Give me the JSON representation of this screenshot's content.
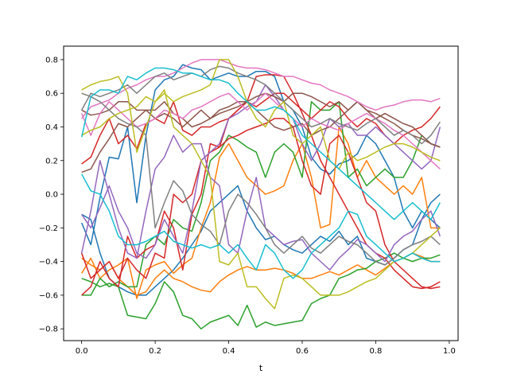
{
  "chart_data": {
    "type": "line",
    "title": "",
    "xlabel": "t",
    "ylabel": "",
    "xlim": [
      -0.049,
      1.024
    ],
    "ylim": [
      -0.87,
      0.88
    ],
    "xticks": [
      0.0,
      0.2,
      0.4,
      0.6,
      0.8,
      1.0
    ],
    "xtick_labels": [
      "0.0",
      "0.2",
      "0.4",
      "0.6",
      "0.8",
      "1.0"
    ],
    "yticks": [
      -0.8,
      -0.6,
      -0.4,
      -0.2,
      0.0,
      0.2,
      0.4,
      0.6,
      0.8
    ],
    "ytick_labels": [
      "−0.8",
      "−0.6",
      "−0.4",
      "−0.2",
      "0.0",
      "0.2",
      "0.4",
      "0.6",
      "0.8"
    ],
    "grid": false,
    "legend": "none",
    "x": [
      0.0,
      0.025,
      0.05,
      0.075,
      0.1,
      0.125,
      0.15,
      0.175,
      0.2,
      0.225,
      0.25,
      0.275,
      0.3,
      0.325,
      0.35,
      0.375,
      0.4,
      0.425,
      0.45,
      0.475,
      0.5,
      0.525,
      0.55,
      0.575,
      0.6,
      0.625,
      0.65,
      0.675,
      0.7,
      0.725,
      0.75,
      0.775,
      0.8,
      0.825,
      0.85,
      0.875,
      0.9,
      0.925,
      0.95,
      0.975
    ],
    "series": [
      {
        "color": "#1f77b4",
        "values": [
          -0.17,
          -0.3,
          -0.02,
          0.22,
          0.21,
          0.4,
          -0.05,
          0.35,
          0.62,
          0.68,
          0.7,
          0.77,
          0.75,
          0.74,
          0.68,
          0.7,
          0.72,
          0.7,
          0.7,
          0.73,
          0.73,
          0.7,
          0.55,
          0.5,
          0.4,
          0.22,
          0.15,
          0.12,
          0.18,
          0.2,
          0.24,
          0.35,
          0.3,
          0.2,
          0.1,
          -0.1,
          -0.2,
          -0.1,
          -0.15,
          -0.2
        ]
      },
      {
        "color": "#1f77b4",
        "values": [
          -0.12,
          -0.15,
          -0.35,
          -0.5,
          -0.55,
          -0.58,
          -0.6,
          -0.6,
          -0.55,
          -0.5,
          -0.45,
          -0.38,
          -0.3,
          -0.22,
          -0.1,
          -0.05,
          0.0,
          0.05,
          -0.1,
          -0.2,
          -0.27,
          -0.25,
          -0.3,
          -0.33,
          -0.35,
          -0.3,
          -0.25,
          -0.28,
          -0.22,
          -0.3,
          -0.25,
          -0.38,
          -0.4,
          -0.42,
          -0.38,
          -0.33,
          -0.3,
          -0.15,
          -0.05,
          0.0
        ]
      },
      {
        "color": "#ff7f0e",
        "values": [
          -0.47,
          -0.38,
          -0.5,
          -0.45,
          -0.42,
          -0.38,
          -0.62,
          -0.45,
          -0.42,
          -0.4,
          -0.47,
          -0.42,
          -0.38,
          -0.2,
          -0.05,
          0.22,
          0.3,
          0.2,
          0.1,
          0.05,
          0.0,
          0.02,
          0.05,
          0.2,
          0.3,
          0.1,
          -0.2,
          -0.18,
          0.4,
          0.3,
          0.1,
          0.2,
          0.1,
          0.05,
          0.0,
          0.05,
          0.0,
          0.1,
          -0.2,
          -0.2
        ]
      },
      {
        "color": "#ff7f0e",
        "values": [
          -0.38,
          -0.42,
          -0.45,
          -0.4,
          -0.5,
          -0.55,
          -0.6,
          -0.58,
          -0.5,
          -0.45,
          -0.5,
          -0.52,
          -0.55,
          -0.57,
          -0.58,
          -0.52,
          -0.48,
          -0.45,
          -0.43,
          -0.45,
          -0.45,
          -0.44,
          -0.45,
          -0.47,
          -0.5,
          -0.5,
          -0.48,
          -0.46,
          -0.48,
          -0.45,
          -0.42,
          -0.45,
          -0.48,
          -0.44,
          -0.4,
          -0.38,
          -0.35,
          -0.37,
          -0.4,
          -0.4
        ]
      },
      {
        "color": "#2ca02c",
        "values": [
          -0.5,
          -0.52,
          -0.55,
          -0.53,
          -0.55,
          -0.72,
          -0.73,
          -0.74,
          -0.65,
          -0.52,
          -0.58,
          -0.72,
          -0.74,
          -0.8,
          -0.76,
          -0.74,
          -0.72,
          -0.78,
          -0.66,
          -0.79,
          -0.76,
          -0.78,
          -0.77,
          -0.76,
          -0.75,
          -0.65,
          -0.62,
          -0.6,
          -0.5,
          -0.48,
          -0.45,
          -0.44,
          -0.4,
          -0.38,
          -0.35,
          -0.38,
          -0.4,
          -0.38,
          -0.38,
          -0.36
        ]
      },
      {
        "color": "#2ca02c",
        "values": [
          -0.6,
          -0.6,
          -0.5,
          -0.55,
          -0.52,
          -0.55,
          -0.55,
          -0.3,
          -0.25,
          -0.3,
          -0.15,
          -0.2,
          -0.22,
          -0.05,
          0.2,
          0.25,
          0.35,
          0.32,
          0.28,
          0.25,
          0.1,
          0.25,
          0.3,
          0.25,
          0.1,
          0.55,
          0.5,
          0.5,
          0.55,
          0.1,
          0.15,
          0.05,
          0.1,
          0.15,
          0.1,
          0.1,
          0.2,
          0.35,
          0.3,
          0.28
        ]
      },
      {
        "color": "#d62728",
        "values": [
          -0.6,
          -0.55,
          -0.4,
          -0.5,
          -0.55,
          -0.25,
          -0.38,
          -0.33,
          -0.3,
          -0.1,
          -0.2,
          -0.45,
          -0.12,
          0.0,
          0.3,
          0.28,
          0.45,
          0.5,
          0.55,
          0.7,
          0.71,
          0.71,
          0.7,
          0.6,
          0.48,
          0.35,
          0.2,
          0.1,
          0.0,
          -0.1,
          -0.2,
          -0.3,
          -0.35,
          -0.38,
          -0.45,
          -0.5,
          -0.55,
          -0.56,
          -0.55,
          -0.52
        ]
      },
      {
        "color": "#d62728",
        "values": [
          -0.35,
          -0.5,
          -0.45,
          -0.4,
          -0.5,
          -0.38,
          -0.45,
          -0.5,
          -0.35,
          -0.38,
          0.0,
          -0.05,
          0.0,
          0.2,
          0.25,
          0.28,
          0.33,
          0.35,
          0.38,
          0.4,
          0.42,
          0.45,
          0.45,
          0.4,
          0.2,
          0.05,
          0.0,
          0.3,
          0.35,
          0.25,
          0.1,
          -0.05,
          -0.1,
          -0.3,
          -0.4,
          -0.45,
          -0.5,
          -0.55,
          -0.56,
          -0.55
        ]
      },
      {
        "color": "#d62728",
        "values": [
          0.18,
          0.22,
          0.35,
          0.45,
          0.3,
          0.35,
          0.27,
          0.42,
          0.45,
          0.42,
          0.55,
          0.38,
          0.35,
          0.4,
          0.4,
          0.43,
          0.45,
          0.5,
          0.55,
          0.52,
          0.56,
          0.6,
          0.6,
          0.55,
          0.5,
          0.45,
          0.5,
          0.55,
          0.52,
          0.45,
          0.4,
          0.45,
          0.42,
          0.35,
          0.3,
          0.35,
          0.38,
          0.4,
          0.45,
          0.52
        ]
      },
      {
        "color": "#9467bd",
        "values": [
          -0.12,
          -0.2,
          -0.08,
          0.05,
          -0.1,
          -0.2,
          -0.35,
          -0.38,
          -0.3,
          -0.15,
          -0.25,
          -0.35,
          -0.1,
          0.2,
          0.25,
          0.3,
          0.45,
          0.48,
          0.52,
          0.55,
          0.65,
          0.58,
          0.5,
          0.45,
          0.3,
          0.2,
          0.3,
          0.45,
          0.4,
          0.42,
          0.35,
          0.35,
          0.4,
          0.35,
          0.3,
          0.25,
          0.2,
          0.15,
          0.2,
          0.4
        ]
      },
      {
        "color": "#9467bd",
        "values": [
          -0.35,
          -0.1,
          0.2,
          0.0,
          -0.2,
          -0.35,
          -0.38,
          -0.1,
          0.15,
          0.22,
          0.35,
          0.25,
          0.3,
          0.3,
          0.1,
          0.05,
          -0.3,
          -0.35,
          -0.1,
          0.1,
          -0.2,
          -0.25,
          -0.3,
          -0.28,
          -0.27,
          -0.35,
          -0.4,
          -0.45,
          -0.38,
          -0.33,
          -0.27,
          -0.3,
          -0.35,
          -0.4,
          -0.3,
          -0.25,
          -0.22,
          -0.15,
          -0.1,
          -0.25
        ]
      },
      {
        "color": "#8c564b",
        "values": [
          0.13,
          0.15,
          0.25,
          0.33,
          0.42,
          0.4,
          0.45,
          0.5,
          0.5,
          0.55,
          0.48,
          0.45,
          0.4,
          0.42,
          0.45,
          0.5,
          0.52,
          0.55,
          0.55,
          0.58,
          0.6,
          0.58,
          0.55,
          0.6,
          0.6,
          0.58,
          0.55,
          0.52,
          0.55,
          0.5,
          0.55,
          0.5,
          0.45,
          0.48,
          0.45,
          0.42,
          0.4,
          0.35,
          0.3,
          0.28
        ]
      },
      {
        "color": "#8c564b",
        "values": [
          0.5,
          0.47,
          0.48,
          0.5,
          0.55,
          0.55,
          0.5,
          0.5,
          0.45,
          0.48,
          0.45,
          0.4,
          0.45,
          0.5,
          0.45,
          0.48,
          0.5,
          0.52,
          0.55,
          0.5,
          0.45,
          0.4,
          0.38,
          0.4,
          0.42,
          0.35,
          0.38,
          0.4,
          0.45,
          0.5,
          0.55,
          0.5,
          0.48,
          0.45,
          0.42,
          0.38,
          0.35,
          0.33,
          0.3,
          0.28
        ]
      },
      {
        "color": "#e377c2",
        "values": [
          0.45,
          0.52,
          0.54,
          0.56,
          0.6,
          0.63,
          0.65,
          0.68,
          0.7,
          0.7,
          0.72,
          0.75,
          0.78,
          0.8,
          0.8,
          0.8,
          0.78,
          0.76,
          0.75,
          0.75,
          0.74,
          0.72,
          0.7,
          0.7,
          0.68,
          0.66,
          0.65,
          0.62,
          0.6,
          0.58,
          0.55,
          0.52,
          0.5,
          0.52,
          0.53,
          0.55,
          0.56,
          0.56,
          0.55,
          0.57
        ]
      },
      {
        "color": "#e377c2",
        "values": [
          0.48,
          0.35,
          0.48,
          0.55,
          0.5,
          0.45,
          0.4,
          0.42,
          0.45,
          0.5,
          0.48,
          0.45,
          0.5,
          0.52,
          0.55,
          0.58,
          0.6,
          0.55,
          0.5,
          0.55,
          0.6,
          0.55,
          0.5,
          0.45,
          0.4,
          0.45,
          0.42,
          0.4,
          0.38,
          0.42,
          0.45,
          0.48,
          0.45,
          0.42,
          0.38,
          0.35,
          0.3,
          0.25,
          0.2,
          0.15
        ]
      },
      {
        "color": "#7f7f7f",
        "values": [
          0.6,
          0.58,
          0.55,
          0.5,
          0.45,
          0.42,
          0.4,
          0.35,
          -0.2,
          -0.05,
          0.08,
          0.02,
          -0.12,
          -0.18,
          -0.22,
          -0.3,
          -0.1,
          0.0,
          -0.05,
          -0.12,
          -0.2,
          -0.3,
          -0.35,
          -0.3,
          -0.25,
          -0.32,
          -0.35,
          -0.3,
          -0.25,
          -0.28,
          -0.3,
          -0.35,
          -0.4,
          -0.42,
          -0.38,
          -0.33,
          -0.3,
          -0.28,
          -0.25,
          -0.3
        ]
      },
      {
        "color": "#7f7f7f",
        "values": [
          0.5,
          0.6,
          0.58,
          0.6,
          0.62,
          0.65,
          0.6,
          0.65,
          0.7,
          0.72,
          0.68,
          0.7,
          0.72,
          0.7,
          0.74,
          0.76,
          0.75,
          0.72,
          0.7,
          0.68,
          0.65,
          0.6,
          0.55,
          0.5,
          0.45,
          0.4,
          0.42,
          0.45,
          0.42,
          0.4,
          0.38,
          0.42,
          0.45,
          0.4,
          0.35,
          0.38,
          0.35,
          0.3,
          0.35,
          0.43
        ]
      },
      {
        "color": "#bcbd22",
        "values": [
          0.62,
          0.65,
          0.67,
          0.68,
          0.7,
          0.6,
          0.25,
          0.4,
          0.55,
          0.6,
          0.55,
          0.58,
          0.6,
          0.62,
          0.65,
          0.8,
          0.8,
          0.7,
          0.55,
          0.45,
          0.4,
          0.5,
          0.55,
          0.35,
          0.3,
          0.35,
          0.4,
          0.2,
          0.15,
          0.25,
          0.2,
          0.22,
          0.25,
          0.28,
          0.3,
          0.3,
          0.28,
          0.25,
          0.22,
          0.2
        ]
      },
      {
        "color": "#bcbd22",
        "values": [
          0.35,
          0.38,
          0.4,
          0.45,
          0.48,
          0.5,
          0.52,
          0.58,
          0.55,
          0.62,
          0.4,
          0.35,
          0.3,
          0.2,
          0.1,
          -0.4,
          -0.42,
          -0.35,
          -0.55,
          -0.55,
          -0.62,
          -0.68,
          -0.5,
          -0.48,
          -0.5,
          -0.55,
          -0.6,
          -0.6,
          -0.6,
          -0.58,
          -0.55,
          -0.52,
          -0.5,
          -0.45,
          -0.4,
          -0.38,
          -0.35,
          -0.3,
          -0.25,
          -0.2
        ]
      },
      {
        "color": "#17becf",
        "values": [
          0.34,
          0.58,
          0.62,
          0.62,
          0.6,
          0.7,
          0.68,
          0.72,
          0.75,
          0.75,
          0.74,
          0.72,
          0.72,
          0.7,
          0.68,
          0.68,
          0.66,
          0.6,
          0.55,
          0.5,
          0.5,
          0.52,
          0.5,
          0.45,
          0.35,
          0.3,
          0.25,
          0.2,
          0.15,
          0.1,
          0.05,
          0.0,
          -0.05,
          -0.1,
          -0.15,
          -0.1,
          -0.05,
          -0.1,
          -0.15,
          -0.05
        ]
      },
      {
        "color": "#17becf",
        "values": [
          0.12,
          0.02,
          0.0,
          -0.1,
          -0.25,
          -0.3,
          -0.3,
          -0.28,
          -0.25,
          -0.22,
          -0.28,
          -0.3,
          -0.32,
          -0.3,
          -0.32,
          -0.3,
          -0.35,
          -0.3,
          -0.38,
          -0.45,
          -0.3,
          -0.35,
          -0.45,
          -0.5,
          -0.45,
          -0.35,
          -0.3,
          -0.25,
          -0.2,
          -0.1,
          -0.12,
          -0.25,
          -0.3,
          -0.35,
          -0.4,
          -0.38,
          -0.35,
          -0.38,
          -0.4,
          -0.4
        ]
      }
    ]
  }
}
